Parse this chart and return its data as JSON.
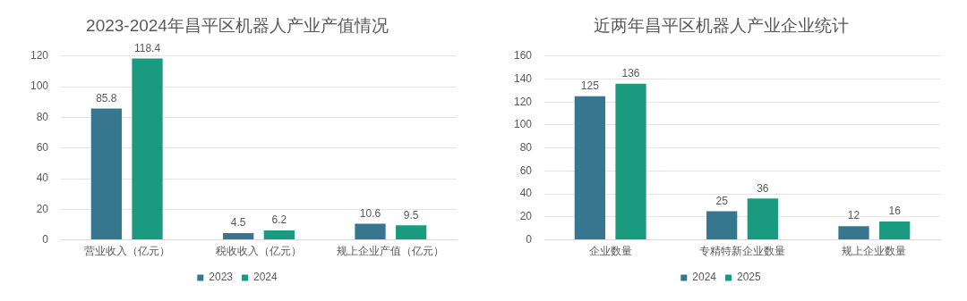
{
  "chart_data": [
    {
      "type": "bar",
      "title": "2023-2024年昌平区机器人产业产值情况",
      "categories": [
        "营业收入（亿元）",
        "税收收入（亿元）",
        "规上企业产值（亿元）"
      ],
      "series": [
        {
          "name": "2023",
          "color": "#36768f",
          "values": [
            85.8,
            4.5,
            10.6
          ]
        },
        {
          "name": "2024",
          "color": "#1a9a7e",
          "values": [
            118.4,
            6.2,
            9.5
          ]
        }
      ],
      "ylim": [
        0,
        120
      ],
      "yticks": [
        0,
        20,
        40,
        60,
        80,
        100,
        120
      ],
      "grid": "y",
      "legend": "bottom",
      "data_labels": true
    },
    {
      "type": "bar",
      "title": "近两年昌平区机器人产业企业统计",
      "categories": [
        "企业数量",
        "专精特新企业数量",
        "规上企业数量"
      ],
      "series": [
        {
          "name": "2024",
          "color": "#36768f",
          "values": [
            125,
            25,
            12
          ]
        },
        {
          "name": "2025",
          "color": "#1a9a7e",
          "values": [
            136,
            36,
            16
          ]
        }
      ],
      "ylim": [
        0,
        160
      ],
      "yticks": [
        0,
        20,
        40,
        60,
        80,
        100,
        120,
        140,
        160
      ],
      "grid": "y",
      "legend": "bottom",
      "data_labels": true
    }
  ]
}
